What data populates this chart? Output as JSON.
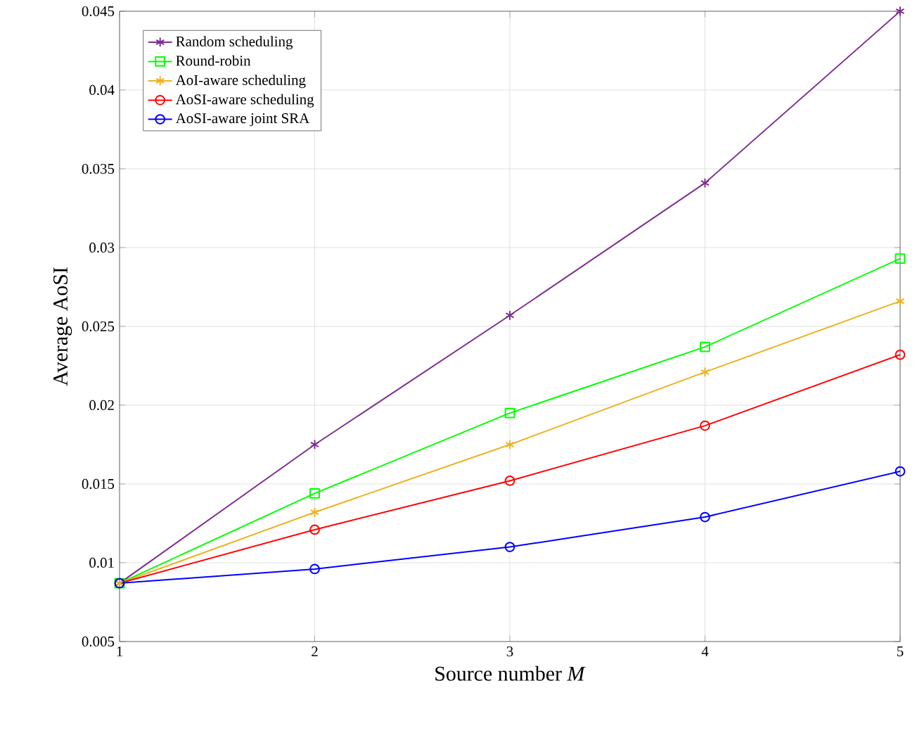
{
  "chart_data": {
    "type": "line",
    "xlabel": "Source number *M*",
    "ylabel": "Average AoSI",
    "x": [
      1,
      2,
      3,
      4,
      5
    ],
    "series": [
      {
        "name": "Random scheduling",
        "color": "#7e2f8e",
        "marker": "cross",
        "values": [
          0.0087,
          0.0175,
          0.0257,
          0.0341,
          0.045
        ]
      },
      {
        "name": "Round-robin",
        "color": "#00ff00",
        "marker": "square",
        "values": [
          0.0087,
          0.0144,
          0.0195,
          0.0237,
          0.0293
        ]
      },
      {
        "name": "AoI-aware scheduling",
        "color": "#edb120",
        "marker": "cross",
        "values": [
          0.0087,
          0.0132,
          0.0175,
          0.0221,
          0.0266
        ]
      },
      {
        "name": "AoSI-aware scheduling",
        "color": "#ff0000",
        "marker": "circle",
        "values": [
          0.0087,
          0.0121,
          0.0152,
          0.0187,
          0.0232
        ]
      },
      {
        "name": "AoSI-aware joint SRA",
        "color": "#0000ff",
        "marker": "circle",
        "values": [
          0.0087,
          0.0096,
          0.011,
          0.0129,
          0.0158
        ]
      }
    ],
    "xlim": [
      1,
      5
    ],
    "ylim": [
      0.005,
      0.045
    ],
    "xticks": [
      1,
      2,
      3,
      4,
      5
    ],
    "yticks": [
      0.005,
      0.01,
      0.015,
      0.02,
      0.025,
      0.03,
      0.035,
      0.04,
      0.045
    ],
    "grid": true,
    "legend": "top left",
    "line_style": "solid"
  }
}
